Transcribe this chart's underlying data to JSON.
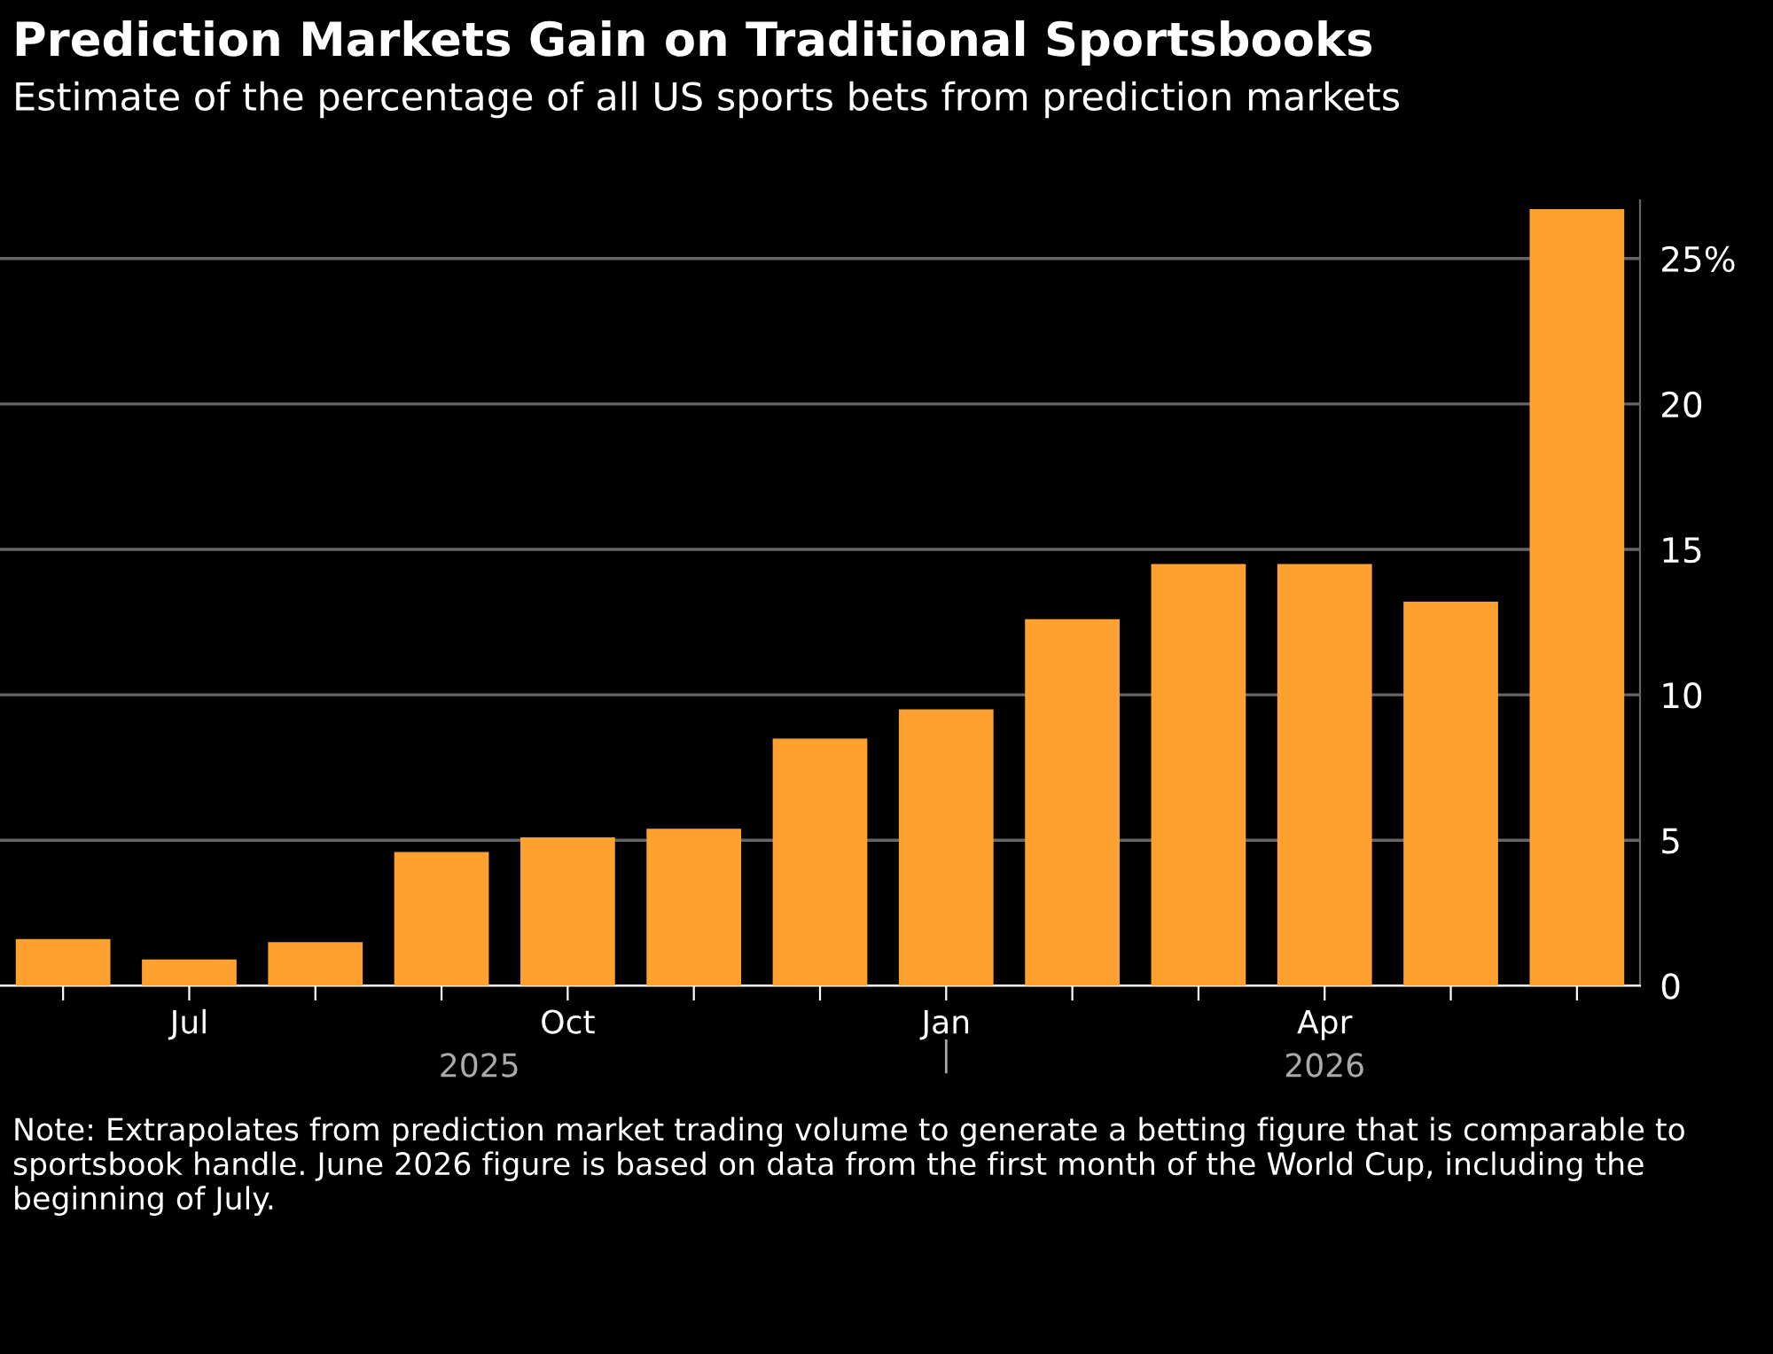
{
  "chart_data": {
    "type": "bar",
    "title": "Prediction Markets Gain on Traditional Sportsbooks",
    "subtitle": "Estimate of the percentage of all US sports bets from prediction markets",
    "categories": [
      null,
      "Jul",
      null,
      null,
      "Oct",
      null,
      null,
      "Jan",
      null,
      null,
      "Apr",
      null,
      null
    ],
    "values": [
      1.6,
      0.9,
      1.5,
      4.6,
      5.1,
      5.4,
      8.5,
      9.5,
      12.6,
      14.5,
      14.5,
      13.2,
      26.7
    ],
    "color": "#ffa12e",
    "ylim": [
      0,
      27
    ],
    "yticks": [
      0,
      5,
      10,
      15,
      20,
      {
        "value": 25,
        "label": "25%"
      }
    ],
    "grid": "y",
    "annotations": [
      "2025",
      "2026",
      "Note: Extrapolates from prediction market trading volume to generate a betting figure that is comparable to sportsbook handle. June 2026 figure is based on data from the first month of the World Cup, including the beginning of July."
    ]
  }
}
